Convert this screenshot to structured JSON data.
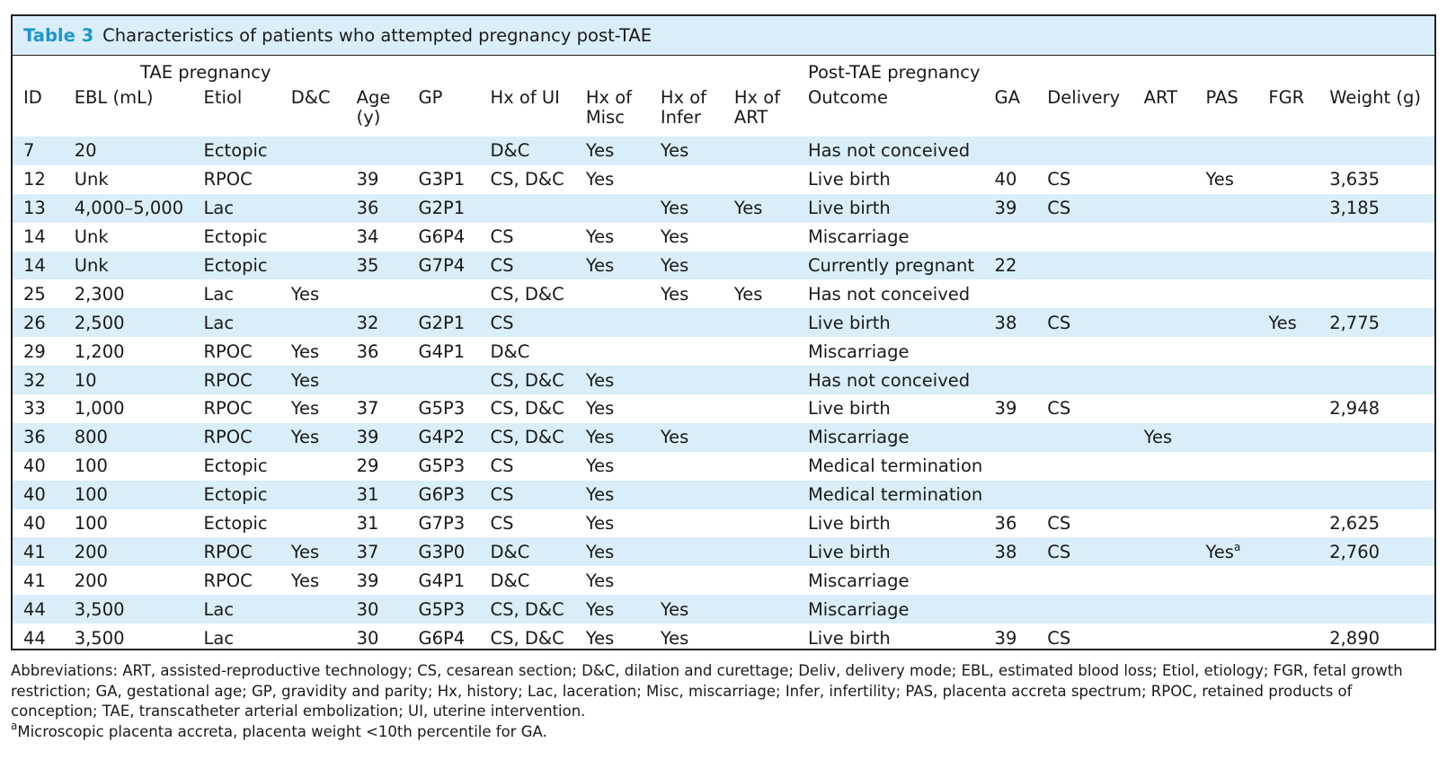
{
  "caption": {
    "label": "Table 3",
    "title": "Characteristics of patients who attempted pregnancy post-TAE"
  },
  "groups": {
    "tae": "TAE pregnancy",
    "post": "Post-TAE pregnancy"
  },
  "columns": [
    "ID",
    "EBL (mL)",
    "Etiol",
    "D&C",
    "Age (y)",
    "GP",
    "Hx of UI",
    "Hx of Misc",
    "Hx of Infer",
    "Hx of ART",
    "Outcome",
    "GA",
    "Delivery",
    "ART",
    "PAS",
    "FGR",
    "Weight (g)"
  ],
  "rows": [
    [
      "7",
      "20",
      "Ectopic",
      "",
      "",
      "",
      "D&C",
      "Yes",
      "Yes",
      "",
      "Has not conceived",
      "",
      "",
      "",
      "",
      "",
      ""
    ],
    [
      "12",
      "Unk",
      "RPOC",
      "",
      "39",
      "G3P1",
      "CS, D&C",
      "Yes",
      "",
      "",
      "Live birth",
      "40",
      "CS",
      "",
      "Yes",
      "",
      "3,635"
    ],
    [
      "13",
      "4,000–5,000",
      "Lac",
      "",
      "36",
      "G2P1",
      "",
      "",
      "Yes",
      "Yes",
      "Live birth",
      "39",
      "CS",
      "",
      "",
      "",
      "3,185"
    ],
    [
      "14",
      "Unk",
      "Ectopic",
      "",
      "34",
      "G6P4",
      "CS",
      "Yes",
      "Yes",
      "",
      "Miscarriage",
      "",
      "",
      "",
      "",
      "",
      ""
    ],
    [
      "14",
      "Unk",
      "Ectopic",
      "",
      "35",
      "G7P4",
      "CS",
      "Yes",
      "Yes",
      "",
      "Currently pregnant",
      "22",
      "",
      "",
      "",
      "",
      ""
    ],
    [
      "25",
      "2,300",
      "Lac",
      "Yes",
      "",
      "",
      "CS, D&C",
      "",
      "Yes",
      "Yes",
      "Has not conceived",
      "",
      "",
      "",
      "",
      "",
      ""
    ],
    [
      "26",
      "2,500",
      "Lac",
      "",
      "32",
      "G2P1",
      "CS",
      "",
      "",
      "",
      "Live birth",
      "38",
      "CS",
      "",
      "",
      "Yes",
      "2,775"
    ],
    [
      "29",
      "1,200",
      "RPOC",
      "Yes",
      "36",
      "G4P1",
      "D&C",
      "",
      "",
      "",
      "Miscarriage",
      "",
      "",
      "",
      "",
      "",
      ""
    ],
    [
      "32",
      "10",
      "RPOC",
      "Yes",
      "",
      "",
      "CS, D&C",
      "Yes",
      "",
      "",
      "Has not conceived",
      "",
      "",
      "",
      "",
      "",
      ""
    ],
    [
      "33",
      "1,000",
      "RPOC",
      "Yes",
      "37",
      "G5P3",
      "CS, D&C",
      "Yes",
      "",
      "",
      "Live birth",
      "39",
      "CS",
      "",
      "",
      "",
      "2,948"
    ],
    [
      "36",
      "800",
      "RPOC",
      "Yes",
      "39",
      "G4P2",
      "CS, D&C",
      "Yes",
      "Yes",
      "",
      "Miscarriage",
      "",
      "",
      "Yes",
      "",
      "",
      ""
    ],
    [
      "40",
      "100",
      "Ectopic",
      "",
      "29",
      "G5P3",
      "CS",
      "Yes",
      "",
      "",
      "Medical termination",
      "",
      "",
      "",
      "",
      "",
      ""
    ],
    [
      "40",
      "100",
      "Ectopic",
      "",
      "31",
      "G6P3",
      "CS",
      "Yes",
      "",
      "",
      "Medical termination",
      "",
      "",
      "",
      "",
      "",
      ""
    ],
    [
      "40",
      "100",
      "Ectopic",
      "",
      "31",
      "G7P3",
      "CS",
      "Yes",
      "",
      "",
      "Live birth",
      "36",
      "CS",
      "",
      "",
      "",
      "2,625"
    ],
    [
      "41",
      "200",
      "RPOC",
      "Yes",
      "37",
      "G3P0",
      "D&C",
      "Yes",
      "",
      "",
      "Live birth",
      "38",
      "CS",
      "",
      "Yes",
      "",
      "2,760"
    ],
    [
      "41",
      "200",
      "RPOC",
      "Yes",
      "39",
      "G4P1",
      "D&C",
      "Yes",
      "",
      "",
      "Miscarriage",
      "",
      "",
      "",
      "",
      "",
      ""
    ],
    [
      "44",
      "3,500",
      "Lac",
      "",
      "30",
      "G5P3",
      "CS, D&C",
      "Yes",
      "Yes",
      "",
      "Miscarriage",
      "",
      "",
      "",
      "",
      "",
      ""
    ],
    [
      "44",
      "3,500",
      "Lac",
      "",
      "30",
      "G6P4",
      "CS, D&C",
      "Yes",
      "Yes",
      "",
      "Live birth",
      "39",
      "CS",
      "",
      "",
      "",
      "2,890"
    ]
  ],
  "pas_marker": "a",
  "footnotes": {
    "abbreviations": "Abbreviations: ART, assisted-reproductive technology; CS, cesarean section; D&C, dilation and curettage; Deliv, delivery mode; EBL, estimated blood loss; Etiol, etiology; FGR, fetal growth restriction; GA, gestational age; GP, gravidity and parity; Hx, history; Lac, laceration; Misc, miscarriage; Infer, infertility; PAS, placenta accreta spectrum; RPOC, retained products of conception; TAE, transcatheter arterial embolization; UI, uterine intervention.",
    "note_marker": "a",
    "note_text": "Microscopic placenta accreta, placenta weight <10th percentile for GA."
  }
}
